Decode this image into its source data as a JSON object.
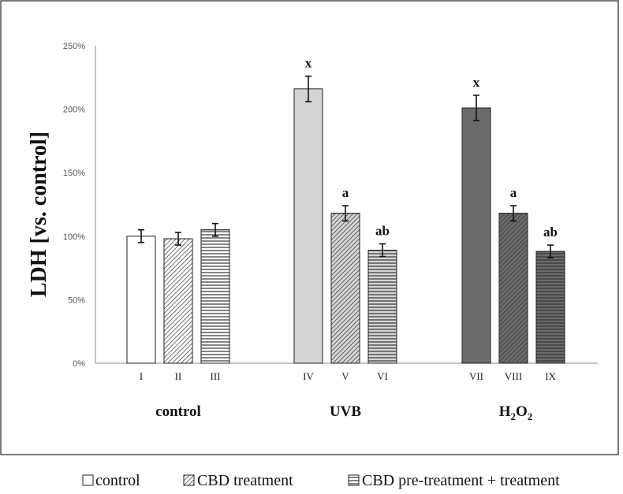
{
  "chart_data": {
    "type": "bar",
    "ylabel": "LDH [vs. control]",
    "ylim": [
      0,
      250
    ],
    "yticks": [
      "0%",
      "50%",
      "100%",
      "150%",
      "200%",
      "250%"
    ],
    "grid": false,
    "groups": [
      {
        "label": "control",
        "label_main": "control",
        "label_sub": ""
      },
      {
        "label": "UVB",
        "label_main": "UVB",
        "label_sub": ""
      },
      {
        "label": "H2O2",
        "label_main": "H",
        "label_sub": "2",
        "label_main2": "O",
        "label_sub2": "2"
      }
    ],
    "bars": [
      {
        "category": "I",
        "group": 0,
        "value": 100,
        "error": 5,
        "annotation": "",
        "fill": "#ffffff",
        "pattern": "none"
      },
      {
        "category": "II",
        "group": 0,
        "value": 98,
        "error": 5,
        "annotation": "",
        "fill": "#ffffff",
        "pattern": "diag"
      },
      {
        "category": "III",
        "group": 0,
        "value": 105,
        "error": 5,
        "annotation": "",
        "fill": "#ffffff",
        "pattern": "horiz"
      },
      {
        "category": "IV",
        "group": 1,
        "value": 216,
        "error": 10,
        "annotation": "x",
        "fill": "#d4d4d4",
        "pattern": "none"
      },
      {
        "category": "V",
        "group": 1,
        "value": 118,
        "error": 6,
        "annotation": "a",
        "fill": "#d4d4d4",
        "pattern": "diag"
      },
      {
        "category": "VI",
        "group": 1,
        "value": 89,
        "error": 5,
        "annotation": "ab",
        "fill": "#d4d4d4",
        "pattern": "horiz"
      },
      {
        "category": "VII",
        "group": 2,
        "value": 201,
        "error": 10,
        "annotation": "x",
        "fill": "#6b6b6b",
        "pattern": "none"
      },
      {
        "category": "VIII",
        "group": 2,
        "value": 118,
        "error": 6,
        "annotation": "a",
        "fill": "#6b6b6b",
        "pattern": "diag"
      },
      {
        "category": "IX",
        "group": 2,
        "value": 88,
        "error": 5,
        "annotation": "ab",
        "fill": "#6b6b6b",
        "pattern": "horiz"
      }
    ],
    "legend": {
      "placement": "bottom",
      "entries": [
        {
          "label": "control",
          "pattern": "none"
        },
        {
          "label": "CBD treatment",
          "pattern": "diag"
        },
        {
          "label": "CBD pre-treatment + treatment",
          "pattern": "horiz"
        }
      ]
    }
  }
}
